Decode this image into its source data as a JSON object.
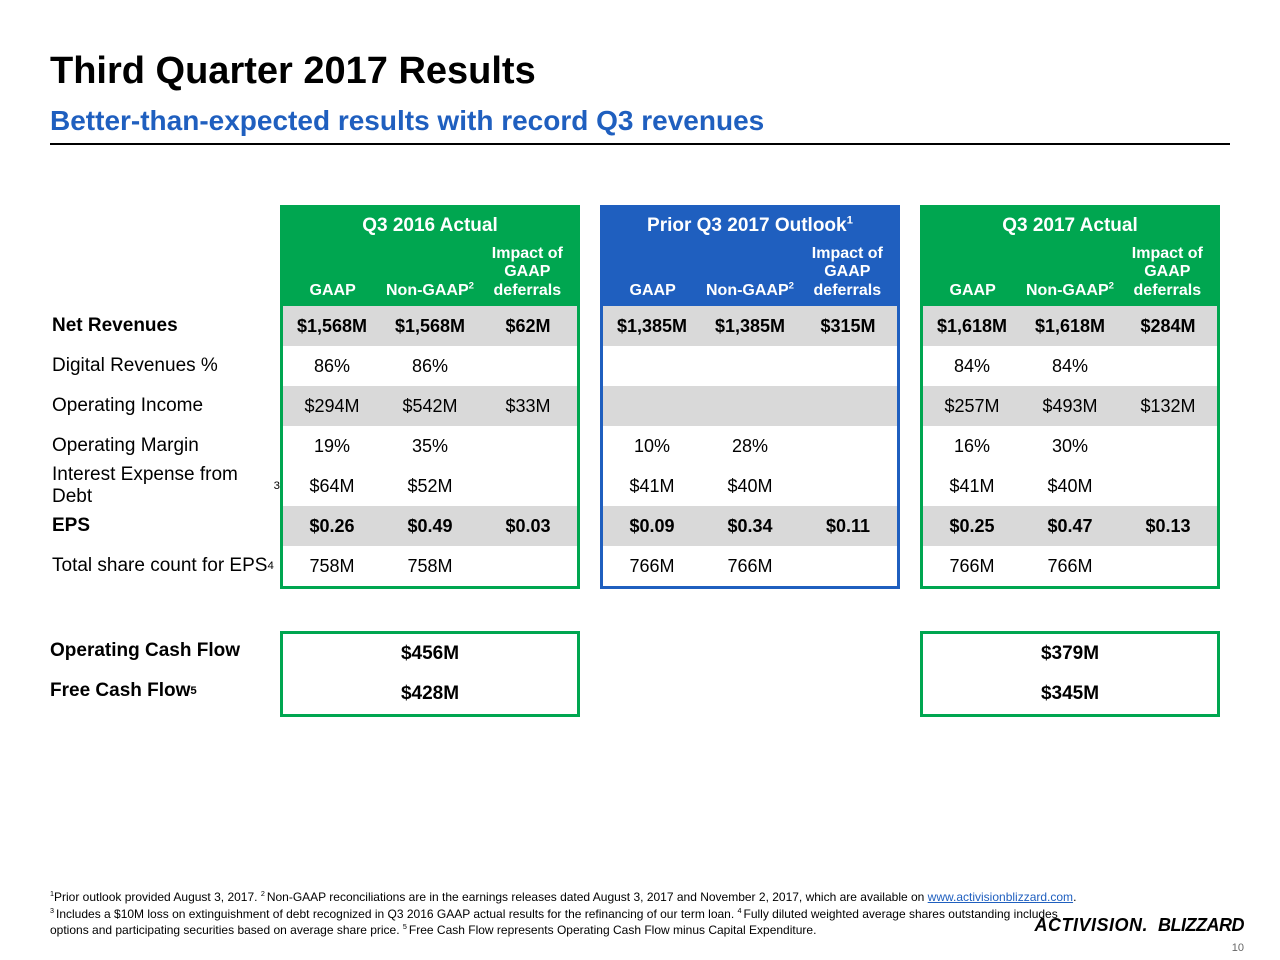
{
  "title": "Third Quarter 2017 Results",
  "subtitle": "Better-than-expected results with record Q3 revenues",
  "colors": {
    "green": "#00a650",
    "blue": "#1f5fbf",
    "band": "#d9d9d9",
    "rule": "#000000",
    "subtitle": "#1f5fbf"
  },
  "typography": {
    "title_fontsize": 38,
    "subtitle_fontsize": 28,
    "body_fontsize": 19,
    "footnote_fontsize": 12
  },
  "blocks": [
    {
      "key": "q3_2016",
      "title": "Q3 2016 Actual",
      "color": "green"
    },
    {
      "key": "prior_outlook",
      "title_html": "Prior Q3 2017 Outlook<sup>1</sup>",
      "color": "blue"
    },
    {
      "key": "q3_2017",
      "title": "Q3 2017 Actual",
      "color": "green"
    }
  ],
  "subcols": {
    "gaap": "GAAP",
    "nongaap_html": "Non-GAAP<sup>2</sup>",
    "impact_html": "Impact of<br>GAAP<br>deferrals"
  },
  "rows": [
    {
      "label": "Net Revenues",
      "bold": true,
      "band": true,
      "q3_2016": [
        "$1,568M",
        "$1,568M",
        "$62M"
      ],
      "prior_outlook": [
        "$1,385M",
        "$1,385M",
        "$315M"
      ],
      "q3_2017": [
        "$1,618M",
        "$1,618M",
        "$284M"
      ]
    },
    {
      "label": "Digital Revenues %",
      "bold": false,
      "band": false,
      "q3_2016": [
        "86%",
        "86%",
        ""
      ],
      "prior_outlook": [
        "",
        "",
        ""
      ],
      "q3_2017": [
        "84%",
        "84%",
        ""
      ]
    },
    {
      "label": "Operating Income",
      "bold": false,
      "band": true,
      "q3_2016": [
        "$294M",
        "$542M",
        "$33M"
      ],
      "prior_outlook": [
        "",
        "",
        ""
      ],
      "q3_2017": [
        "$257M",
        "$493M",
        "$132M"
      ]
    },
    {
      "label": "Operating Margin",
      "bold": false,
      "band": false,
      "q3_2016": [
        "19%",
        "35%",
        ""
      ],
      "prior_outlook": [
        "10%",
        "28%",
        ""
      ],
      "q3_2017": [
        "16%",
        "30%",
        ""
      ]
    },
    {
      "label_html": "Interest Expense from Debt<sup>3</sup>",
      "bold": false,
      "band": false,
      "q3_2016": [
        "$64M",
        "$52M",
        ""
      ],
      "prior_outlook": [
        "$41M",
        "$40M",
        ""
      ],
      "q3_2017": [
        "$41M",
        "$40M",
        ""
      ]
    },
    {
      "label": "EPS",
      "bold": true,
      "band": true,
      "q3_2016": [
        "$0.26",
        "$0.49",
        "$0.03"
      ],
      "prior_outlook": [
        "$0.09",
        "$0.34",
        "$0.11"
      ],
      "q3_2017": [
        "$0.25",
        "$0.47",
        "$0.13"
      ]
    },
    {
      "label_html": "Total share count for EPS<sup>4</sup>",
      "bold": false,
      "band": false,
      "q3_2016": [
        "758M",
        "758M",
        ""
      ],
      "prior_outlook": [
        "766M",
        "766M",
        ""
      ],
      "q3_2017": [
        "766M",
        "766M",
        ""
      ]
    }
  ],
  "cash": {
    "rows": [
      {
        "label": "Operating Cash Flow",
        "q3_2016": "$456M",
        "q3_2017": "$379M"
      },
      {
        "label_html": "Free Cash Flow<sup>5</sup>",
        "q3_2016": "$428M",
        "q3_2017": "$345M"
      }
    ]
  },
  "footnotes": {
    "text_before_link": "Prior outlook provided August 3, 2017. ",
    "fn2_before": "Non-GAAP reconciliations are in the earnings releases dated August 3, 2017 and November 2, 2017, which are available on ",
    "link_text": "www.activisionblizzard.com",
    "fn3": "Includes a $10M loss on extinguishment of debt recognized in Q3 2016 GAAP actual results for the refinancing of our term loan. ",
    "fn4": "Fully diluted weighted average shares outstanding includes options and participating securities based on average share price. ",
    "fn5": "Free Cash Flow represents Operating Cash Flow minus Capital Expenditure."
  },
  "logos": {
    "activision": "ACTIVISION.",
    "blizzard": "BLIZZARD"
  },
  "page_number": "10"
}
